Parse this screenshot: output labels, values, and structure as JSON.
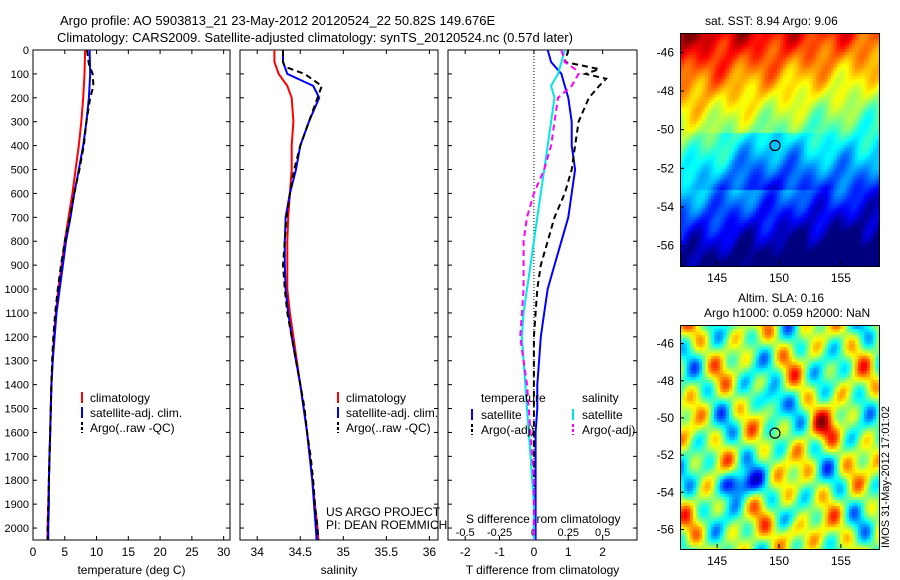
{
  "header": {
    "line1": "Argo profile: AO 5903813_21 23-May-2012 20120524_22 50.82S 149.676E",
    "line2": "Climatology: CARS2009. Satellite-adjusted climatology: synTS_20120524.nc (0.57d later)"
  },
  "colors": {
    "climatology": "#ff0000",
    "satellite": "#0000ff",
    "argo": "#000000",
    "sat_salinity": "#00e5e5",
    "argo_adj_salinity": "#ff00ff"
  },
  "chart_data": [
    {
      "type": "line",
      "id": "temperature",
      "xlabel": "temperature (deg C)",
      "xlim": [
        0,
        31
      ],
      "xticks": [
        0,
        5,
        10,
        15,
        20,
        25,
        30
      ],
      "ylim": [
        2050,
        0
      ],
      "yticks": [
        0,
        100,
        200,
        300,
        400,
        500,
        600,
        700,
        800,
        900,
        1000,
        1100,
        1200,
        1300,
        1400,
        1500,
        1600,
        1700,
        1800,
        1900,
        2000
      ],
      "legend": [
        "climatology",
        "satellite-adj. clim.",
        "Argo(..raw -QC)"
      ],
      "legend_position": "lower-right",
      "series": [
        {
          "name": "climatology",
          "style": "solid",
          "color": "#ff0000",
          "depth": [
            0,
            100,
            200,
            300,
            400,
            500,
            600,
            700,
            800,
            900,
            1000,
            1100,
            1200,
            1300,
            1400,
            1500,
            1600,
            1700,
            1800,
            1900,
            2000,
            2050
          ],
          "values": [
            8.2,
            8.1,
            7.9,
            7.6,
            7.2,
            6.7,
            6.2,
            5.6,
            5.0,
            4.5,
            4.0,
            3.6,
            3.3,
            3.1,
            2.9,
            2.8,
            2.7,
            2.6,
            2.5,
            2.4,
            2.3,
            2.3
          ]
        },
        {
          "name": "satellite-adj. clim.",
          "style": "solid",
          "color": "#0000ff",
          "depth": [
            0,
            100,
            200,
            300,
            400,
            500,
            600,
            700,
            800,
            900,
            1000,
            1100,
            1200,
            1300,
            1400,
            1500,
            1600,
            1700,
            1800,
            1900,
            2000,
            2050
          ],
          "values": [
            8.9,
            9.0,
            8.8,
            8.4,
            7.9,
            7.2,
            6.5,
            5.9,
            5.2,
            4.7,
            4.2,
            3.7,
            3.4,
            3.1,
            2.9,
            2.8,
            2.7,
            2.6,
            2.5,
            2.5,
            2.4,
            2.4
          ]
        },
        {
          "name": "Argo(..raw -QC)",
          "style": "dashed",
          "color": "#000000",
          "depth": [
            0,
            60,
            100,
            150,
            200,
            300,
            400,
            500,
            600,
            700,
            800,
            900,
            1000,
            1100,
            1200,
            1300,
            1400,
            1500,
            1600,
            1700,
            1800,
            1900,
            2000,
            2050
          ],
          "values": [
            8.5,
            8.8,
            9.4,
            9.5,
            9.0,
            8.4,
            8.0,
            7.3,
            6.5,
            5.8,
            5.0,
            4.4,
            3.9,
            3.5,
            3.2,
            3.0,
            2.9,
            2.8,
            2.7,
            2.6,
            2.5,
            2.4,
            2.3,
            2.3
          ]
        }
      ]
    },
    {
      "type": "line",
      "id": "salinity",
      "xlabel": "salinity",
      "xlim": [
        33.8,
        36.1
      ],
      "xticks": [
        34,
        34.5,
        35,
        35.5,
        36
      ],
      "ylim": [
        2050,
        0
      ],
      "legend": [
        "climatology",
        "satellite-adj. clim.",
        "Argo(..raw -QC)"
      ],
      "legend_position": "lower-right",
      "annotation": [
        "US ARGO PROJECT",
        "PI: DEAN ROEMMICH"
      ],
      "series": [
        {
          "name": "climatology",
          "style": "solid",
          "color": "#ff0000",
          "depth": [
            0,
            50,
            100,
            150,
            200,
            300,
            400,
            500,
            600,
            700,
            800,
            900,
            1000,
            1100,
            1200,
            1300,
            1400,
            1500,
            1600,
            1700,
            1800,
            1900,
            2000,
            2050
          ],
          "values": [
            34.2,
            34.2,
            34.25,
            34.35,
            34.4,
            34.42,
            34.4,
            34.4,
            34.38,
            34.36,
            34.35,
            34.35,
            34.35,
            34.38,
            34.42,
            34.46,
            34.5,
            34.54,
            34.58,
            34.61,
            34.64,
            34.67,
            34.7,
            34.71
          ]
        },
        {
          "name": "satellite-adj. clim.",
          "style": "solid",
          "color": "#0000ff",
          "depth": [
            0,
            50,
            100,
            150,
            200,
            300,
            400,
            500,
            600,
            700,
            800,
            900,
            1000,
            1100,
            1200,
            1300,
            1400,
            1500,
            1600,
            1700,
            1800,
            1900,
            2000,
            2050
          ],
          "values": [
            34.3,
            34.3,
            34.35,
            34.65,
            34.72,
            34.6,
            34.5,
            34.45,
            34.38,
            34.33,
            34.32,
            34.32,
            34.33,
            34.36,
            34.4,
            34.45,
            34.5,
            34.54,
            34.58,
            34.61,
            34.64,
            34.66,
            34.68,
            34.69
          ]
        },
        {
          "name": "Argo(..raw -QC)",
          "style": "dashed",
          "color": "#000000",
          "depth": [
            0,
            50,
            70,
            100,
            150,
            200,
            300,
            400,
            500,
            600,
            700,
            800,
            900,
            1000,
            1100,
            1200,
            1300,
            1400,
            1500,
            1600,
            1700,
            1800,
            1900,
            2000,
            2050
          ],
          "values": [
            34.3,
            34.3,
            34.32,
            34.55,
            34.75,
            34.7,
            34.6,
            34.5,
            34.43,
            34.38,
            34.34,
            34.32,
            34.3,
            34.32,
            34.35,
            34.4,
            34.45,
            34.5,
            34.55,
            34.58,
            34.62,
            34.65,
            34.67,
            34.7,
            34.71
          ]
        }
      ]
    },
    {
      "type": "line",
      "id": "differences",
      "xlabel": "T difference from climatology",
      "xlabel_top": "S difference from climatology",
      "xlim": [
        -2.5,
        3
      ],
      "xticks": [
        -2,
        -1,
        0,
        1,
        2
      ],
      "s_ticks": [
        {
          "label": "-0.5",
          "t": -2
        },
        {
          "label": "-0.25",
          "t": -1
        },
        {
          "label": "0",
          "t": 0
        },
        {
          "label": "0.25",
          "t": 1
        },
        {
          "label": "0.5",
          "t": 2
        }
      ],
      "ylim": [
        2050,
        0
      ],
      "legend_temperature_title": "temperature",
      "legend_salinity_title": "salinity",
      "legend_temperature": [
        "satellite",
        "Argo(-adj)"
      ],
      "legend_salinity": [
        "satellite",
        "Argo(-adj)"
      ],
      "legend_position": "lower",
      "series": [
        {
          "name": "satellite",
          "group": "temperature",
          "style": "solid",
          "color": "#0000ff",
          "depth": [
            0,
            50,
            100,
            150,
            200,
            300,
            400,
            500,
            600,
            700,
            800,
            900,
            1000,
            1100,
            1200,
            1300,
            1400,
            1500,
            1600,
            1700,
            1800,
            1900,
            2000,
            2050
          ],
          "values": [
            0.4,
            0.5,
            0.8,
            0.9,
            1.0,
            1.1,
            1.1,
            1.2,
            1.1,
            1.0,
            0.8,
            0.6,
            0.4,
            0.3,
            0.2,
            0.15,
            0.1,
            0.1,
            0.05,
            0.05,
            0.05,
            0.05,
            0.05,
            0.05
          ]
        },
        {
          "name": "Argo(-adj)",
          "group": "temperature",
          "style": "dashed",
          "color": "#000000",
          "depth": [
            0,
            50,
            80,
            100,
            120,
            150,
            200,
            300,
            400,
            500,
            600,
            700,
            800,
            900,
            1000,
            1100,
            1200,
            1300,
            1400,
            1500,
            1600,
            1700,
            1800,
            1900,
            2000,
            2050
          ],
          "values": [
            1.0,
            0.9,
            1.9,
            1.5,
            2.1,
            1.9,
            1.6,
            1.3,
            1.2,
            1.1,
            0.9,
            0.6,
            0.4,
            0.2,
            0.1,
            0.05,
            0.0,
            0.0,
            0.0,
            0.0,
            0.0,
            0.0,
            0.0,
            0.0,
            0.0,
            0.0
          ]
        },
        {
          "name": "satellite",
          "group": "salinity",
          "style": "solid",
          "color": "#00e5e5",
          "depth": [
            0,
            50,
            100,
            150,
            200,
            300,
            400,
            500,
            600,
            700,
            800,
            900,
            1000,
            1100,
            1200,
            1300,
            1400,
            1500,
            1600,
            1700,
            1800,
            1900,
            2000,
            2050
          ],
          "values": [
            0.9,
            0.8,
            0.7,
            0.5,
            0.6,
            0.5,
            0.4,
            0.3,
            0.2,
            0.1,
            0.0,
            -0.1,
            -0.2,
            -0.3,
            -0.35,
            -0.3,
            -0.25,
            -0.2,
            -0.15,
            -0.1,
            -0.05,
            0.0,
            0.0,
            0.0
          ]
        },
        {
          "name": "Argo(-adj)",
          "group": "salinity",
          "style": "dashed",
          "color": "#ff00ff",
          "depth": [
            0,
            50,
            80,
            100,
            150,
            200,
            300,
            400,
            500,
            600,
            700,
            800,
            900,
            1000,
            1100,
            1200,
            1300,
            1400,
            1500,
            1600,
            1700,
            1800,
            1900,
            2000,
            2050
          ],
          "values": [
            0.8,
            0.9,
            1.2,
            1.3,
            1.1,
            0.7,
            0.6,
            0.5,
            0.3,
            0.0,
            -0.2,
            -0.3,
            -0.3,
            -0.3,
            -0.35,
            -0.4,
            -0.3,
            -0.2,
            -0.15,
            -0.1,
            -0.05,
            0.0,
            0.0,
            0.0,
            0.0
          ]
        }
      ]
    }
  ],
  "maps": [
    {
      "id": "sst",
      "title": "sat. SST: 8.94 Argo: 9.06",
      "x_ticks": [
        "145",
        "150",
        "155"
      ],
      "y_ticks": [
        "-46",
        "-48",
        "-50",
        "-52",
        "-54",
        "-56"
      ],
      "xlim": [
        142,
        158
      ],
      "ylim": [
        -57,
        -45
      ],
      "marker": {
        "lon": 149.676,
        "lat": -50.82
      }
    },
    {
      "id": "sla",
      "title": "Altim. SLA: 0.16",
      "subtitle": "Argo h1000: 0.059 h2000: NaN",
      "x_ticks": [
        "145",
        "150",
        "155"
      ],
      "y_ticks": [
        "-46",
        "-48",
        "-50",
        "-52",
        "-54",
        "-56"
      ],
      "xlim": [
        142,
        158
      ],
      "ylim": [
        -57,
        -45
      ],
      "marker": {
        "lon": 149.676,
        "lat": -50.82
      }
    }
  ],
  "footer": {
    "timestamp": "IMOS 31-May-2012 17:01:02"
  }
}
